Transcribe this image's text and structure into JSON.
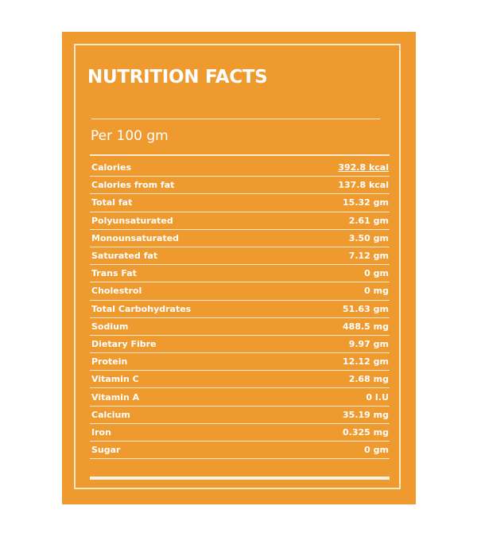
{
  "title": "NUTRITION FACTS",
  "serving": "Per 100 gm",
  "rows": [
    {
      "name": "Calories",
      "value": "392.8 kcal"
    },
    {
      "name": "Calories from fat",
      "value": "137.8 kcal"
    },
    {
      "name": "Total fat",
      "value": "15.32 gm"
    },
    {
      "name": "Polyunsaturated",
      "value": "2.61 gm"
    },
    {
      "name": "Monounsaturated",
      "value": "3.50 gm"
    },
    {
      "name": "Saturated fat",
      "value": "7.12 gm"
    },
    {
      "name": "Trans Fat",
      "value": "0 gm"
    },
    {
      "name": "Cholestrol",
      "value": "0 mg"
    },
    {
      "name": "Total Carbohydrates",
      "value": "51.63 gm"
    },
    {
      "name": "Sodium",
      "value": "488.5 mg"
    },
    {
      "name": "Dietary Fibre",
      "value": "9.97 gm"
    },
    {
      "name": "Protein",
      "value": "12.12 gm"
    },
    {
      "name": "Vitamin C",
      "value": "2.68 mg"
    },
    {
      "name": "Vitamin A",
      "value": "0 I.U"
    },
    {
      "name": "Calcium",
      "value": "35.19 mg"
    },
    {
      "name": "Iron",
      "value": "0.325 mg"
    },
    {
      "name": "Sugar",
      "value": "0 gm"
    }
  ],
  "colors": {
    "panel": "#ef9a2f",
    "text": "#ffffff",
    "rule": "#fce9d0"
  }
}
